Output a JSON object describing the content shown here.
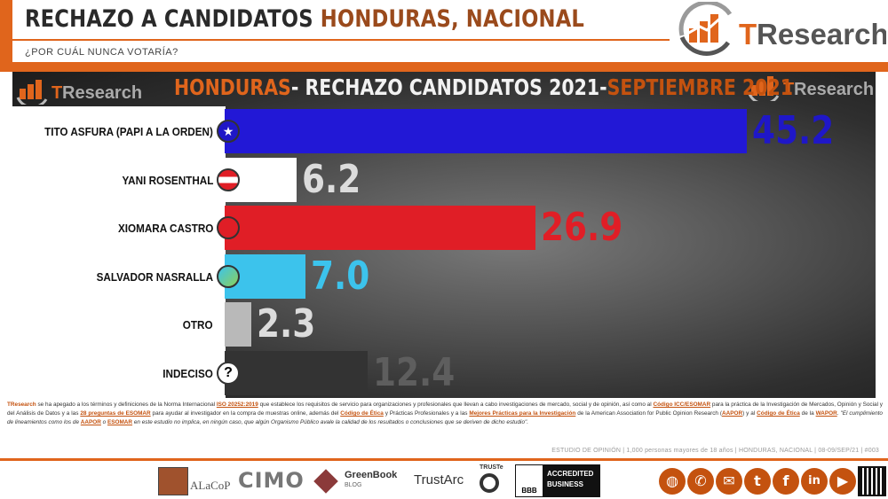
{
  "header": {
    "title_main": "RECHAZO A CANDIDATOS",
    "title_accent": "HONDURAS, NACIONAL",
    "subtitle": "¿POR CUÁL NUNCA VOTARÍA?"
  },
  "brand": {
    "logo_text": "TResearch",
    "color_orange": "#e0651c",
    "color_dark_orange": "#c4520f"
  },
  "chart_data": {
    "type": "bar",
    "title_parts": [
      "HONDURAS",
      "- RECHAZO CANDIDATOS 2021-",
      "SEPTIEMBRE 2021"
    ],
    "categories": [
      "TITO ASFURA (PAPI A LA ORDEN)",
      "YANI ROSENTHAL",
      "XIOMARA CASTRO",
      "SALVADOR NASRALLA",
      "OTRO",
      "INDECISO"
    ],
    "values": [
      45.2,
      6.2,
      26.9,
      7.0,
      2.3,
      12.4
    ],
    "value_labels": [
      "45.2",
      "6.2",
      "26.9",
      "7.0",
      "2.3",
      "12.4"
    ],
    "bar_colors": [
      "#2218d6",
      "#ffffff",
      "#e01e26",
      "#3cc3ec",
      "#b9b9b9",
      "#333333"
    ],
    "label_colors": [
      "#1f17c7",
      "#dcdcdc",
      "#e01e26",
      "#3cc3ec",
      "#dcdcdc",
      "#5e5e5e"
    ],
    "badge_icons": [
      "star-icon",
      "red-white-stripes-icon",
      "libre-icon",
      "salvador-icon",
      "",
      "question-icon"
    ],
    "orientation": "horizontal",
    "xlim": [
      0,
      50
    ],
    "grid": false,
    "legend": "none"
  },
  "footer": {
    "tresearch": "TResearch",
    "p1": " se ha apegado a los términos y definiciones de la Norma Internacional ",
    "iso": "ISO 20252:2019",
    "p2": " que establece los requisitos de servicio para organizaciones y profesionales que llevan a cabo investigaciones de mercado, social y de opinión, así como al ",
    "icc": "Código ICC/ESOMAR",
    "p3": " para la práctica de la Investigación de Mercados, Opinión y Social y del Análisis de Datos y a las ",
    "q28": "28 preguntas de ESOMAR",
    "p4": " para ayudar al investigador en la compra de muestras online, además del ",
    "etica": "Código de Ética",
    "p5": " y Prácticas Profesionales y a las ",
    "mejores": "Mejores Prácticas para la Investigación",
    "p6": " de la American Association for Public Opinion Research (",
    "aapor": "AAPOR",
    "p7": ") y al ",
    "etica2": "Código de Ética",
    "p8": " de la ",
    "wapor": "WAPOR",
    "p9": ". \"El cumplimiento de lineamientos como los de ",
    "aapor2": "AAPOR",
    "p10": " o ",
    "esomar": "ESOMAR",
    "p11": " en este estudio no implica, en ningún caso, que algún Organismo Público avale la calidad de los resultados o conclusiones que se deriven de dicho estudio\".",
    "study": "ESTUDIO DE OPINIÓN | 1,000 personas mayores de 18 años | HONDURAS, NACIONAL | 08-09/SEP/21 | #003"
  },
  "partner_logos": {
    "alacop": "ALaCoP",
    "cimo": "CIMO",
    "greenbook": "GreenBook",
    "greenbook_sub": "BLOG",
    "trustarc": "TrustArc",
    "truste": "TRUSTe",
    "bbb": "BBB",
    "accredited": "ACCREDITED",
    "business": "BUSINESS"
  },
  "social_icons": [
    "globe-icon",
    "phone-icon",
    "email-icon",
    "twitter-icon",
    "facebook-icon",
    "linkedin-icon",
    "youtube-icon"
  ]
}
